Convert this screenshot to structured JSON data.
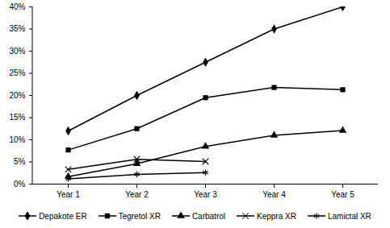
{
  "chart_data": {
    "type": "line",
    "categories": [
      "Year 1",
      "Year 2",
      "Year 3",
      "Year 4",
      "Year 5"
    ],
    "series": [
      {
        "name": "Depakote ER",
        "color": "#000000",
        "marker": "diamond",
        "values": [
          12,
          20,
          27.5,
          35,
          40
        ]
      },
      {
        "name": "Tegretol XR",
        "color": "#000000",
        "marker": "square",
        "values": [
          7.7,
          12.5,
          19.5,
          21.8,
          21.3
        ]
      },
      {
        "name": "Carbatrol",
        "color": "#000000",
        "marker": "triangle",
        "values": [
          1.7,
          4.6,
          8.5,
          11,
          12.1
        ]
      },
      {
        "name": "Keppra XR",
        "color": "#000000",
        "marker": "x",
        "values": [
          3.3,
          5.6,
          5.1,
          null,
          null
        ]
      },
      {
        "name": "Lamictal XR",
        "color": "#000000",
        "marker": "asterisk",
        "values": [
          1.2,
          2.2,
          2.6,
          null,
          null
        ]
      }
    ],
    "ylim": [
      0,
      40
    ],
    "yticks": [
      {
        "value": 0,
        "label": "0%"
      },
      {
        "value": 5,
        "label": "5%"
      },
      {
        "value": 10,
        "label": "10%"
      },
      {
        "value": 15,
        "label": "15%"
      },
      {
        "value": 20,
        "label": "20%"
      },
      {
        "value": 25,
        "label": "25%"
      },
      {
        "value": 30,
        "label": "30%"
      },
      {
        "value": 35,
        "label": "35%"
      },
      {
        "value": 40,
        "label": "40%"
      }
    ],
    "grid": false,
    "legend": "bottom"
  }
}
